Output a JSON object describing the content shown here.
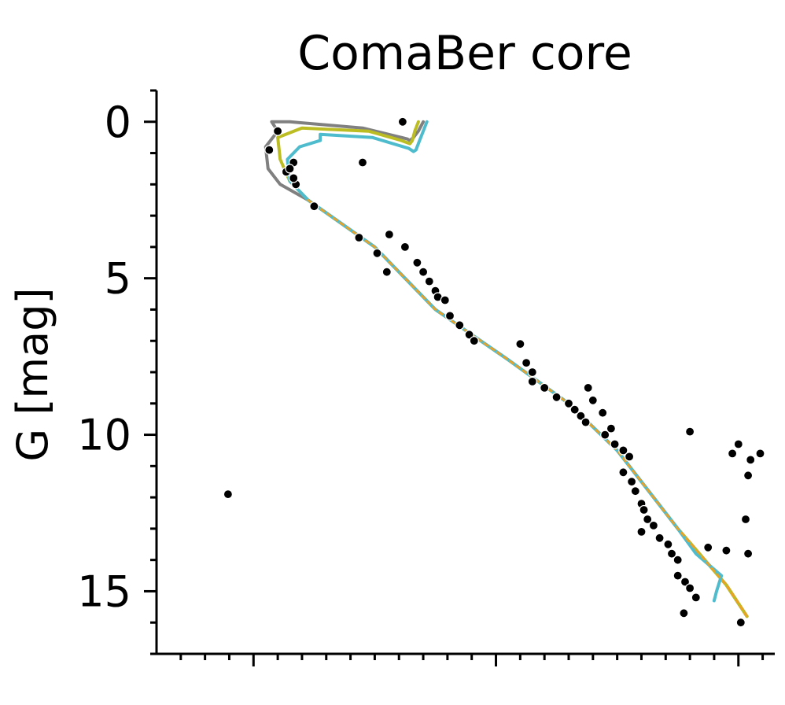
{
  "chart_data": {
    "type": "scatter",
    "title": "ComaBer core",
    "xlabel": "",
    "ylabel": "G [mag]",
    "ylim": [
      -1,
      17
    ],
    "y_inverted": true,
    "xlim": [
      -0.8,
      4.3
    ],
    "x_major_ticks": [
      0,
      2,
      4
    ],
    "x_minor_step": 0.2,
    "x_ticklabels_visible": false,
    "y_major_ticks": [
      0,
      5,
      10,
      15
    ],
    "y_tick_labels": [
      "0",
      "5",
      "10",
      "15"
    ],
    "y_minor_step": 1,
    "grid": false,
    "legend": "none",
    "colors": {
      "points": "#000000",
      "point_edge": "#ffffff",
      "iso_gray": "#808080",
      "iso_olive": "#bcbd22",
      "iso_cyan": "#4fbcce",
      "iso_orange_dash": "#f0a020"
    },
    "series": [
      {
        "kind": "isochrone",
        "color": "#808080",
        "x": [
          1.4,
          1.36,
          1.32,
          1.29,
          1.27,
          1.22,
          0.9,
          0.3,
          0.15,
          0.2,
          0.1,
          0.12,
          0.22,
          0.45,
          1.0,
          1.5,
          2.1,
          2.6,
          3.0,
          3.3,
          3.5,
          3.9,
          4.07
        ],
        "y": [
          0.0,
          0.3,
          0.5,
          0.6,
          0.55,
          0.5,
          0.2,
          0.0,
          0.0,
          0.3,
          0.8,
          1.5,
          2.0,
          2.5,
          4.0,
          6.0,
          7.6,
          9.0,
          10.5,
          12.0,
          13.0,
          14.8,
          15.8
        ]
      },
      {
        "kind": "isochrone",
        "color": "#bcbd22",
        "x": [
          1.36,
          1.33,
          1.31,
          1.29,
          1.22,
          0.95,
          0.4,
          0.2,
          0.22,
          0.3,
          0.45,
          1.0,
          1.5,
          2.1,
          2.6,
          3.0,
          3.3,
          3.5,
          3.9,
          4.07
        ],
        "y": [
          0.0,
          0.3,
          0.6,
          0.7,
          0.6,
          0.3,
          0.2,
          0.5,
          1.2,
          1.9,
          2.5,
          4.0,
          6.0,
          7.6,
          9.0,
          10.5,
          12.0,
          13.0,
          14.8,
          15.8
        ]
      },
      {
        "kind": "isochrone",
        "color": "#4fbcce",
        "x": [
          1.43,
          1.4,
          1.37,
          1.34,
          1.32,
          1.28,
          0.98,
          0.55,
          0.55,
          0.38,
          0.28,
          0.3,
          0.45,
          1.0,
          1.5,
          2.1,
          2.6,
          3.0,
          3.3,
          3.5,
          3.65,
          3.86,
          3.82,
          3.8
        ],
        "y": [
          0.0,
          0.3,
          0.6,
          0.9,
          0.95,
          0.85,
          0.5,
          0.4,
          0.6,
          0.8,
          1.2,
          1.9,
          2.5,
          4.0,
          6.0,
          7.6,
          9.0,
          10.5,
          12.0,
          13.0,
          13.8,
          14.5,
          15.0,
          15.3
        ]
      },
      {
        "kind": "isochrone-dashed",
        "color": "#f0a020",
        "x": [
          0.45,
          1.0,
          1.5,
          2.1,
          2.6,
          3.0,
          3.3,
          3.5,
          3.9,
          4.07
        ],
        "y": [
          2.5,
          4.0,
          6.0,
          7.6,
          9.0,
          10.5,
          12.0,
          13.0,
          14.8,
          15.8
        ]
      },
      {
        "kind": "members",
        "x": [
          -0.21,
          0.13,
          0.2,
          0.27,
          0.33,
          0.3,
          0.35,
          0.33,
          0.5,
          0.9,
          0.87,
          1.02,
          1.1,
          1.12,
          1.23,
          1.25,
          1.35,
          1.4,
          1.45,
          1.5,
          1.52,
          1.58,
          1.62,
          1.7,
          1.78,
          1.82,
          2.2,
          2.25,
          2.3,
          2.3,
          2.4,
          2.5,
          2.6,
          2.65,
          2.7,
          2.74,
          2.76,
          2.8,
          2.88,
          2.9,
          2.95,
          2.98,
          3.05,
          3.05,
          3.1,
          3.12,
          3.15,
          3.2,
          3.22,
          3.25,
          3.3,
          3.2,
          3.6,
          3.35,
          3.42,
          3.45,
          3.5,
          3.5,
          3.56,
          3.6,
          3.65,
          3.55,
          3.75,
          3.9,
          3.95,
          4.0,
          4.02,
          4.08,
          4.06,
          4.08,
          4.1,
          4.18
        ],
        "y": [
          11.9,
          0.9,
          0.3,
          1.6,
          1.3,
          1.5,
          2.0,
          1.8,
          2.7,
          1.3,
          3.7,
          4.2,
          4.8,
          3.6,
          0.0,
          4.0,
          4.5,
          4.8,
          5.1,
          5.4,
          5.6,
          5.7,
          6.2,
          6.5,
          6.8,
          7.0,
          7.1,
          7.7,
          8.0,
          8.3,
          8.5,
          8.8,
          9.0,
          9.2,
          9.4,
          9.6,
          8.5,
          8.9,
          9.3,
          10.0,
          9.8,
          10.3,
          10.5,
          11.2,
          10.7,
          11.5,
          11.8,
          12.2,
          12.4,
          12.7,
          12.9,
          13.1,
          9.9,
          13.3,
          13.5,
          13.8,
          14.0,
          14.5,
          14.7,
          14.9,
          15.2,
          15.7,
          13.6,
          13.7,
          10.6,
          10.3,
          16.0,
          13.8,
          12.7,
          11.3,
          10.8,
          10.6
        ]
      }
    ]
  }
}
